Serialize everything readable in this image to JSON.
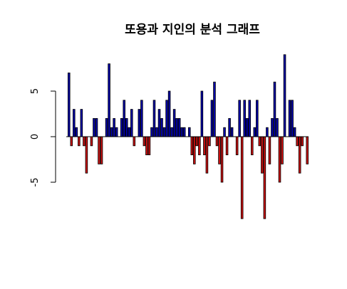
{
  "chart_data": {
    "type": "bar",
    "title": "또용과 지인의 분석 그래프",
    "xlabel": "",
    "ylabel": "",
    "ylim": [
      -9,
      9
    ],
    "yticks": [
      -5,
      0,
      5
    ],
    "ytick_labels": [
      "-5",
      "0",
      "5"
    ],
    "grid": false,
    "legend": "none",
    "colors": {
      "positive": "#0000aa",
      "negative": "#cc1111",
      "axis": "#000000"
    },
    "values": [
      7,
      -1,
      3,
      1,
      -1,
      3,
      -1,
      -4,
      0,
      -1,
      2,
      2,
      -3,
      -3,
      0,
      2,
      8,
      1,
      2,
      1,
      0,
      2,
      4,
      2,
      1,
      3,
      -1,
      0,
      3,
      4,
      -1,
      -2,
      -2,
      1,
      4,
      1,
      3,
      2,
      1,
      4,
      5,
      1,
      3,
      2,
      2,
      1,
      1,
      0,
      1,
      -2,
      -3,
      -1,
      -2,
      5,
      -2,
      -4,
      -1,
      4,
      6,
      -1,
      -3,
      -5,
      1,
      -2,
      2,
      1,
      0,
      -2,
      4,
      -9,
      4,
      2,
      4,
      -2,
      1,
      4,
      -1,
      -4,
      -9,
      1,
      -3,
      2,
      6,
      2,
      -5,
      -3,
      9,
      0,
      4,
      4,
      1,
      -1,
      -4,
      -1,
      0,
      -3
    ]
  }
}
